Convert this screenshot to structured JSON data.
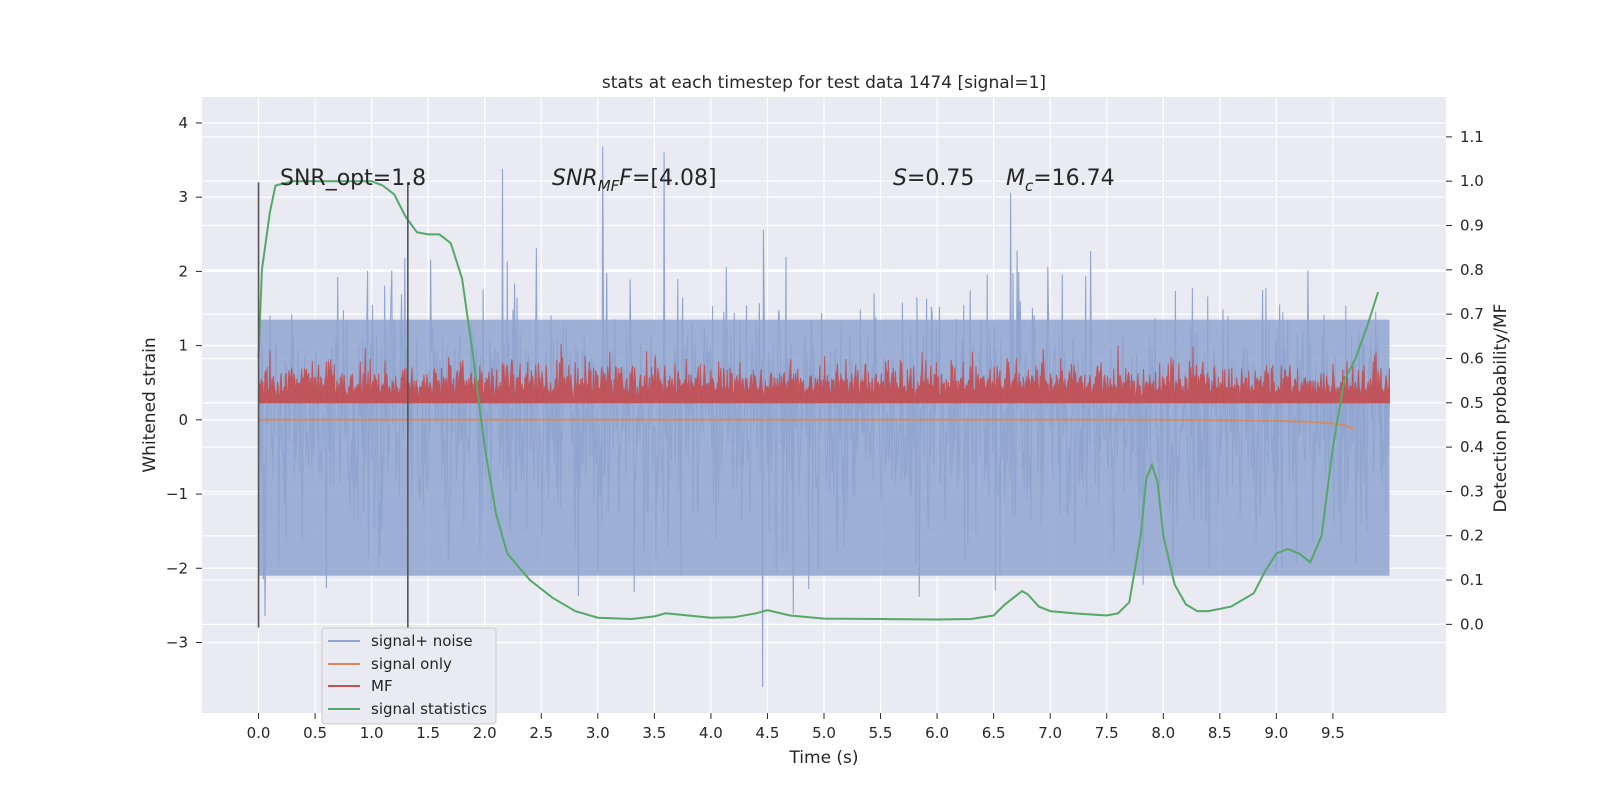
{
  "chart_data": {
    "type": "line",
    "title": "stats at each timestep for test data 1474 [signal=1]",
    "xlabel": "Time (s)",
    "ylabel": "Whitened strain",
    "ylabel_right": "Detection probability/MF",
    "xlim": [
      -0.5,
      10.5
    ],
    "ylim": [
      -3.95,
      4.35
    ],
    "ylim_right": [
      -0.2,
      1.19
    ],
    "x_ticks": [
      "0.0",
      "0.5",
      "1.0",
      "1.5",
      "2.0",
      "2.5",
      "3.0",
      "3.5",
      "4.0",
      "4.5",
      "5.0",
      "5.5",
      "6.0",
      "6.5",
      "7.0",
      "7.5",
      "8.0",
      "8.5",
      "9.0",
      "9.5"
    ],
    "y_ticks": [
      "−3",
      "−2",
      "−1",
      "0",
      "1",
      "2",
      "3",
      "4"
    ],
    "y_ticks_right": [
      "0.0",
      "0.1",
      "0.2",
      "0.3",
      "0.4",
      "0.5",
      "0.6",
      "0.7",
      "0.8",
      "0.9",
      "1.0",
      "1.1"
    ],
    "grid": true,
    "legend_position": "lower-left",
    "colors": {
      "signal_noise": "#8fa5cf",
      "signal_only": "#dd8452",
      "mf": "#c44e52",
      "stats": "#55a868",
      "background": "#eaeaf2",
      "vline": "#555555"
    },
    "annotations": {
      "snr_opt": "SNR_opt=1.8",
      "snr_mf_main": "SNR",
      "snr_mf_sub": "MF",
      "snr_mf_value": "=[4.08]",
      "s_main": "S",
      "s_value": "=0.75",
      "mc_main": "M",
      "mc_sub": "c",
      "mc_value": "=16.74"
    },
    "vertical_lines": [
      0.0,
      1.32
    ],
    "series": [
      {
        "name": "signal+ noise",
        "description": "dense noise trace between x=0.0 and 10.0",
        "amplitude_range": [
          -3.6,
          4.0
        ]
      },
      {
        "name": "signal only",
        "x": [
          0.0,
          1.0,
          2.0,
          3.0,
          4.0,
          5.0,
          6.0,
          7.0,
          8.0,
          8.5,
          9.0,
          9.3,
          9.5,
          9.6,
          9.65,
          9.68
        ],
        "y": [
          0.0,
          0.0,
          0.0,
          0.0,
          0.0,
          0.0,
          0.0,
          0.0,
          0.0,
          0.01,
          0.02,
          0.04,
          0.07,
          0.1,
          0.14,
          0.2
        ]
      },
      {
        "name": "MF",
        "description": "matched filter output (right axis), ~0.5-0.6",
        "range_right": [
          0.5,
          0.62
        ]
      },
      {
        "name": "signal statistics",
        "x": [
          0.0,
          0.03,
          0.1,
          0.15,
          0.3,
          0.5,
          0.8,
          1.0,
          1.1,
          1.2,
          1.3,
          1.4,
          1.5,
          1.6,
          1.7,
          1.8,
          1.9,
          2.0,
          2.1,
          2.2,
          2.4,
          2.6,
          2.8,
          3.0,
          3.3,
          3.5,
          3.6,
          3.8,
          4.0,
          4.2,
          4.4,
          4.5,
          4.7,
          5.0,
          5.5,
          6.0,
          6.3,
          6.5,
          6.6,
          6.7,
          6.75,
          6.8,
          6.9,
          7.0,
          7.2,
          7.5,
          7.6,
          7.7,
          7.8,
          7.85,
          7.9,
          7.95,
          8.0,
          8.1,
          8.2,
          8.3,
          8.4,
          8.6,
          8.8,
          8.9,
          9.0,
          9.1,
          9.2,
          9.3,
          9.4,
          9.5,
          9.6,
          9.7,
          9.8,
          9.9
        ],
        "y": [
          0.6,
          0.8,
          0.93,
          0.99,
          1.0,
          1.0,
          1.0,
          1.0,
          0.99,
          0.97,
          0.92,
          0.885,
          0.88,
          0.88,
          0.86,
          0.78,
          0.6,
          0.4,
          0.25,
          0.16,
          0.1,
          0.06,
          0.03,
          0.015,
          0.012,
          0.018,
          0.025,
          0.02,
          0.015,
          0.016,
          0.025,
          0.032,
          0.02,
          0.013,
          0.012,
          0.011,
          0.012,
          0.02,
          0.045,
          0.065,
          0.075,
          0.068,
          0.04,
          0.03,
          0.025,
          0.02,
          0.025,
          0.05,
          0.2,
          0.33,
          0.36,
          0.32,
          0.2,
          0.09,
          0.045,
          0.03,
          0.03,
          0.04,
          0.07,
          0.12,
          0.16,
          0.17,
          0.16,
          0.14,
          0.2,
          0.4,
          0.55,
          0.6,
          0.67,
          0.75
        ]
      }
    ]
  }
}
